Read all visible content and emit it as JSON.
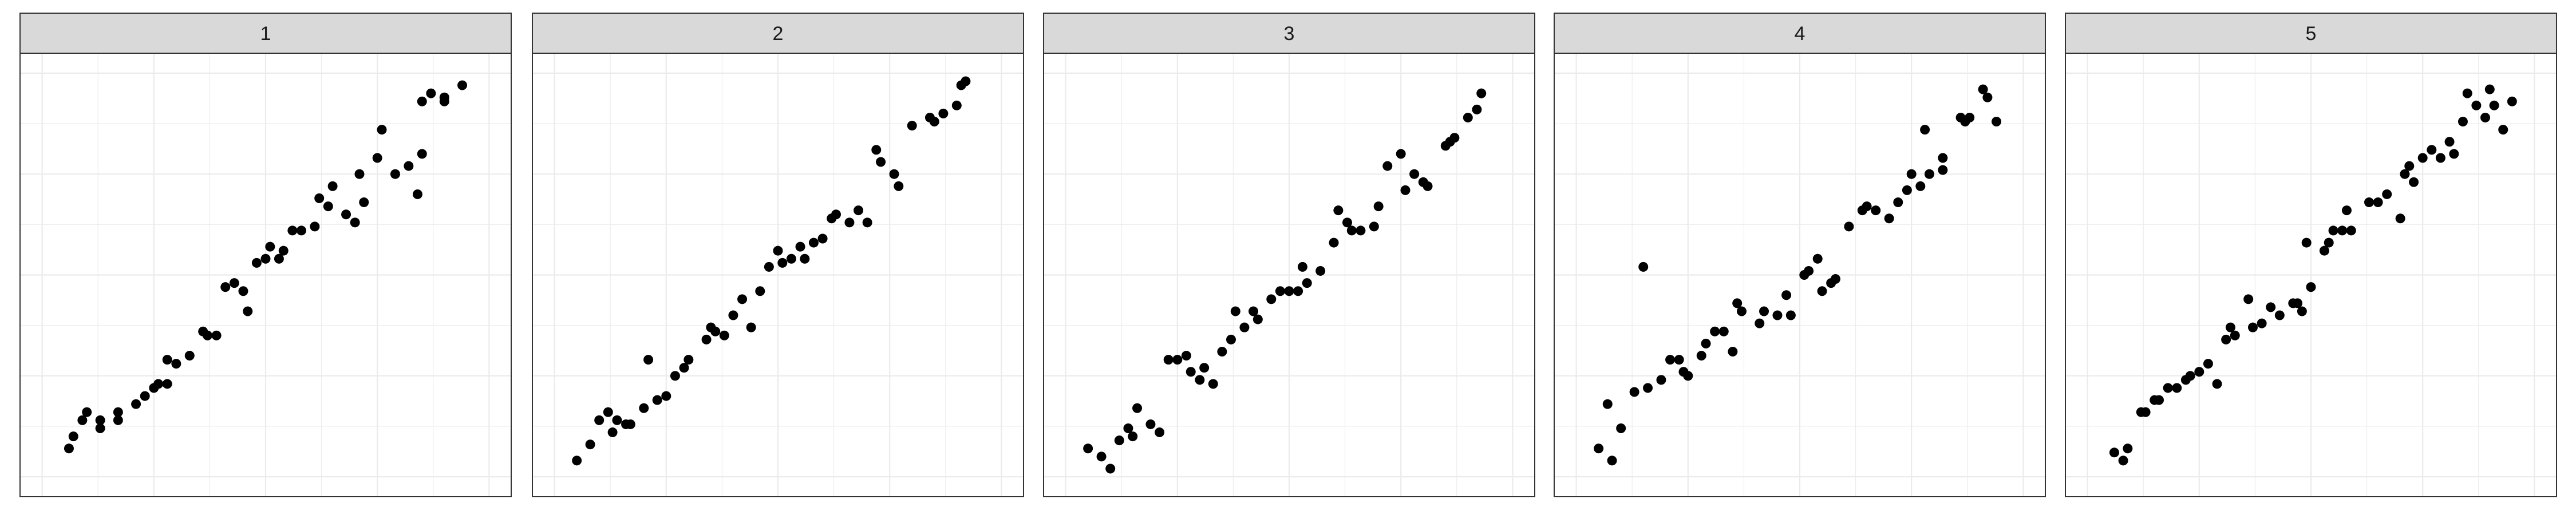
{
  "chart_data": {
    "type": "scatter",
    "facet_layout": "1x5",
    "x_range": [
      0,
      1
    ],
    "y_range": [
      0,
      1
    ],
    "grid": true,
    "axes_labels_shown": false,
    "point_color": "#000000",
    "panels": [
      {
        "label": "1",
        "points": [
          [
            0.06,
            0.07
          ],
          [
            0.07,
            0.1
          ],
          [
            0.09,
            0.14
          ],
          [
            0.1,
            0.16
          ],
          [
            0.13,
            0.12
          ],
          [
            0.13,
            0.14
          ],
          [
            0.17,
            0.14
          ],
          [
            0.17,
            0.16
          ],
          [
            0.21,
            0.18
          ],
          [
            0.23,
            0.2
          ],
          [
            0.25,
            0.22
          ],
          [
            0.26,
            0.23
          ],
          [
            0.28,
            0.23
          ],
          [
            0.28,
            0.29
          ],
          [
            0.3,
            0.28
          ],
          [
            0.33,
            0.3
          ],
          [
            0.36,
            0.36
          ],
          [
            0.37,
            0.35
          ],
          [
            0.39,
            0.35
          ],
          [
            0.41,
            0.47
          ],
          [
            0.43,
            0.48
          ],
          [
            0.45,
            0.46
          ],
          [
            0.46,
            0.41
          ],
          [
            0.48,
            0.53
          ],
          [
            0.5,
            0.54
          ],
          [
            0.51,
            0.57
          ],
          [
            0.53,
            0.54
          ],
          [
            0.54,
            0.56
          ],
          [
            0.56,
            0.61
          ],
          [
            0.58,
            0.61
          ],
          [
            0.61,
            0.62
          ],
          [
            0.62,
            0.69
          ],
          [
            0.64,
            0.67
          ],
          [
            0.65,
            0.72
          ],
          [
            0.68,
            0.65
          ],
          [
            0.7,
            0.63
          ],
          [
            0.71,
            0.75
          ],
          [
            0.72,
            0.68
          ],
          [
            0.75,
            0.79
          ],
          [
            0.76,
            0.86
          ],
          [
            0.79,
            0.75
          ],
          [
            0.82,
            0.77
          ],
          [
            0.84,
            0.7
          ],
          [
            0.85,
            0.8
          ],
          [
            0.85,
            0.93
          ],
          [
            0.87,
            0.95
          ],
          [
            0.9,
            0.93
          ],
          [
            0.9,
            0.94
          ],
          [
            0.94,
            0.97
          ]
        ]
      },
      {
        "label": "2",
        "points": [
          [
            0.05,
            0.04
          ],
          [
            0.08,
            0.08
          ],
          [
            0.1,
            0.14
          ],
          [
            0.12,
            0.16
          ],
          [
            0.13,
            0.11
          ],
          [
            0.14,
            0.14
          ],
          [
            0.16,
            0.13
          ],
          [
            0.17,
            0.13
          ],
          [
            0.2,
            0.17
          ],
          [
            0.21,
            0.29
          ],
          [
            0.23,
            0.19
          ],
          [
            0.25,
            0.2
          ],
          [
            0.27,
            0.25
          ],
          [
            0.29,
            0.27
          ],
          [
            0.3,
            0.29
          ],
          [
            0.34,
            0.34
          ],
          [
            0.35,
            0.37
          ],
          [
            0.36,
            0.36
          ],
          [
            0.38,
            0.35
          ],
          [
            0.4,
            0.4
          ],
          [
            0.42,
            0.44
          ],
          [
            0.44,
            0.37
          ],
          [
            0.46,
            0.46
          ],
          [
            0.48,
            0.52
          ],
          [
            0.5,
            0.56
          ],
          [
            0.51,
            0.53
          ],
          [
            0.53,
            0.54
          ],
          [
            0.55,
            0.57
          ],
          [
            0.56,
            0.54
          ],
          [
            0.58,
            0.58
          ],
          [
            0.6,
            0.59
          ],
          [
            0.62,
            0.64
          ],
          [
            0.63,
            0.65
          ],
          [
            0.66,
            0.63
          ],
          [
            0.68,
            0.66
          ],
          [
            0.7,
            0.63
          ],
          [
            0.72,
            0.81
          ],
          [
            0.73,
            0.78
          ],
          [
            0.76,
            0.75
          ],
          [
            0.77,
            0.72
          ],
          [
            0.8,
            0.87
          ],
          [
            0.84,
            0.89
          ],
          [
            0.85,
            0.88
          ],
          [
            0.87,
            0.9
          ],
          [
            0.9,
            0.92
          ],
          [
            0.91,
            0.97
          ],
          [
            0.92,
            0.98
          ]
        ]
      },
      {
        "label": "3",
        "points": [
          [
            0.05,
            0.07
          ],
          [
            0.08,
            0.05
          ],
          [
            0.1,
            0.02
          ],
          [
            0.12,
            0.09
          ],
          [
            0.14,
            0.12
          ],
          [
            0.15,
            0.1
          ],
          [
            0.16,
            0.17
          ],
          [
            0.19,
            0.13
          ],
          [
            0.21,
            0.11
          ],
          [
            0.23,
            0.29
          ],
          [
            0.25,
            0.29
          ],
          [
            0.27,
            0.3
          ],
          [
            0.28,
            0.26
          ],
          [
            0.3,
            0.24
          ],
          [
            0.31,
            0.27
          ],
          [
            0.33,
            0.23
          ],
          [
            0.35,
            0.31
          ],
          [
            0.37,
            0.34
          ],
          [
            0.38,
            0.41
          ],
          [
            0.4,
            0.37
          ],
          [
            0.42,
            0.41
          ],
          [
            0.43,
            0.39
          ],
          [
            0.46,
            0.44
          ],
          [
            0.48,
            0.46
          ],
          [
            0.5,
            0.46
          ],
          [
            0.52,
            0.46
          ],
          [
            0.53,
            0.52
          ],
          [
            0.54,
            0.48
          ],
          [
            0.57,
            0.51
          ],
          [
            0.6,
            0.58
          ],
          [
            0.61,
            0.66
          ],
          [
            0.63,
            0.63
          ],
          [
            0.64,
            0.61
          ],
          [
            0.66,
            0.61
          ],
          [
            0.69,
            0.62
          ],
          [
            0.7,
            0.67
          ],
          [
            0.72,
            0.77
          ],
          [
            0.75,
            0.8
          ],
          [
            0.76,
            0.71
          ],
          [
            0.78,
            0.75
          ],
          [
            0.8,
            0.73
          ],
          [
            0.81,
            0.72
          ],
          [
            0.85,
            0.82
          ],
          [
            0.86,
            0.83
          ],
          [
            0.87,
            0.84
          ],
          [
            0.9,
            0.89
          ],
          [
            0.92,
            0.91
          ],
          [
            0.93,
            0.95
          ]
        ]
      },
      {
        "label": "4",
        "points": [
          [
            0.05,
            0.07
          ],
          [
            0.07,
            0.18
          ],
          [
            0.08,
            0.04
          ],
          [
            0.1,
            0.12
          ],
          [
            0.13,
            0.21
          ],
          [
            0.15,
            0.52
          ],
          [
            0.16,
            0.22
          ],
          [
            0.19,
            0.24
          ],
          [
            0.21,
            0.29
          ],
          [
            0.23,
            0.29
          ],
          [
            0.24,
            0.26
          ],
          [
            0.25,
            0.25
          ],
          [
            0.28,
            0.3
          ],
          [
            0.29,
            0.33
          ],
          [
            0.31,
            0.36
          ],
          [
            0.33,
            0.36
          ],
          [
            0.35,
            0.31
          ],
          [
            0.36,
            0.43
          ],
          [
            0.37,
            0.41
          ],
          [
            0.41,
            0.38
          ],
          [
            0.42,
            0.41
          ],
          [
            0.45,
            0.4
          ],
          [
            0.47,
            0.45
          ],
          [
            0.48,
            0.4
          ],
          [
            0.51,
            0.5
          ],
          [
            0.52,
            0.51
          ],
          [
            0.54,
            0.54
          ],
          [
            0.55,
            0.46
          ],
          [
            0.57,
            0.48
          ],
          [
            0.58,
            0.49
          ],
          [
            0.61,
            0.62
          ],
          [
            0.64,
            0.66
          ],
          [
            0.65,
            0.67
          ],
          [
            0.67,
            0.66
          ],
          [
            0.7,
            0.64
          ],
          [
            0.72,
            0.68
          ],
          [
            0.74,
            0.71
          ],
          [
            0.75,
            0.75
          ],
          [
            0.77,
            0.72
          ],
          [
            0.78,
            0.86
          ],
          [
            0.79,
            0.75
          ],
          [
            0.82,
            0.76
          ],
          [
            0.82,
            0.79
          ],
          [
            0.86,
            0.89
          ],
          [
            0.87,
            0.88
          ],
          [
            0.88,
            0.89
          ],
          [
            0.91,
            0.96
          ],
          [
            0.92,
            0.94
          ],
          [
            0.94,
            0.88
          ]
        ]
      },
      {
        "label": "5",
        "points": [
          [
            0.06,
            0.06
          ],
          [
            0.08,
            0.04
          ],
          [
            0.09,
            0.07
          ],
          [
            0.12,
            0.16
          ],
          [
            0.13,
            0.16
          ],
          [
            0.15,
            0.19
          ],
          [
            0.16,
            0.19
          ],
          [
            0.18,
            0.22
          ],
          [
            0.2,
            0.22
          ],
          [
            0.22,
            0.24
          ],
          [
            0.23,
            0.25
          ],
          [
            0.25,
            0.26
          ],
          [
            0.27,
            0.28
          ],
          [
            0.29,
            0.23
          ],
          [
            0.31,
            0.34
          ],
          [
            0.32,
            0.37
          ],
          [
            0.33,
            0.35
          ],
          [
            0.36,
            0.44
          ],
          [
            0.37,
            0.37
          ],
          [
            0.39,
            0.38
          ],
          [
            0.41,
            0.42
          ],
          [
            0.43,
            0.4
          ],
          [
            0.46,
            0.43
          ],
          [
            0.47,
            0.43
          ],
          [
            0.48,
            0.41
          ],
          [
            0.49,
            0.58
          ],
          [
            0.5,
            0.47
          ],
          [
            0.53,
            0.56
          ],
          [
            0.54,
            0.58
          ],
          [
            0.55,
            0.61
          ],
          [
            0.57,
            0.61
          ],
          [
            0.58,
            0.66
          ],
          [
            0.59,
            0.61
          ],
          [
            0.63,
            0.68
          ],
          [
            0.65,
            0.68
          ],
          [
            0.67,
            0.7
          ],
          [
            0.7,
            0.64
          ],
          [
            0.71,
            0.75
          ],
          [
            0.72,
            0.77
          ],
          [
            0.73,
            0.73
          ],
          [
            0.75,
            0.79
          ],
          [
            0.77,
            0.81
          ],
          [
            0.79,
            0.79
          ],
          [
            0.81,
            0.83
          ],
          [
            0.82,
            0.8
          ],
          [
            0.84,
            0.88
          ],
          [
            0.85,
            0.95
          ],
          [
            0.87,
            0.92
          ],
          [
            0.89,
            0.89
          ],
          [
            0.9,
            0.96
          ],
          [
            0.91,
            0.92
          ],
          [
            0.93,
            0.86
          ],
          [
            0.95,
            0.93
          ]
        ]
      }
    ]
  }
}
